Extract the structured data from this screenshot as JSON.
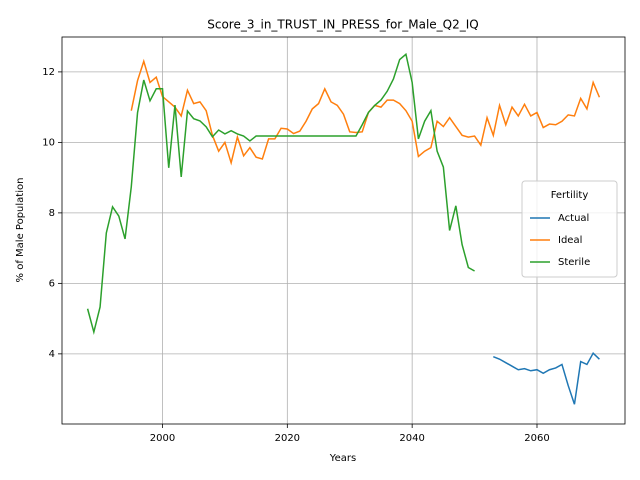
{
  "chart_data": {
    "type": "line",
    "title": "Score_3_in_TRUST_IN_PRESS_for_Male_Q2_IQ",
    "xlabel": "Years",
    "ylabel": "% of Male Population",
    "x": [
      1988,
      1989,
      1990,
      1991,
      1992,
      1993,
      1994,
      1995,
      1996,
      1997,
      1998,
      1999,
      2000,
      2001,
      2002,
      2003,
      2004,
      2005,
      2006,
      2007,
      2008,
      2009,
      2010,
      2011,
      2012,
      2013,
      2014,
      2015,
      2016,
      2017,
      2018,
      2019,
      2020,
      2021,
      2022,
      2023,
      2024,
      2025,
      2026,
      2027,
      2028,
      2029,
      2030,
      2031,
      2032,
      2033,
      2034,
      2035,
      2036,
      2037,
      2038,
      2039,
      2040,
      2041,
      2042,
      2043,
      2044,
      2045,
      2046,
      2047,
      2048,
      2049,
      2050,
      2051,
      2052,
      2053,
      2054,
      2055,
      2056,
      2057,
      2058,
      2059,
      2060,
      2061,
      2062,
      2063,
      2064,
      2065,
      2066,
      2067,
      2068,
      2069,
      2070
    ],
    "series": [
      {
        "name": "Actual",
        "color": "#1f77b4",
        "values": [
          null,
          null,
          null,
          null,
          null,
          null,
          null,
          null,
          null,
          null,
          null,
          null,
          null,
          null,
          null,
          null,
          null,
          null,
          null,
          null,
          null,
          null,
          null,
          null,
          null,
          null,
          null,
          null,
          null,
          null,
          null,
          null,
          null,
          null,
          null,
          null,
          null,
          null,
          null,
          null,
          null,
          null,
          null,
          null,
          null,
          null,
          null,
          null,
          null,
          null,
          null,
          null,
          null,
          null,
          null,
          null,
          null,
          null,
          null,
          null,
          null,
          null,
          null,
          null,
          null,
          3.92,
          3.85,
          3.75,
          3.65,
          3.55,
          3.58,
          3.52,
          3.55,
          3.45,
          3.55,
          3.6,
          3.7,
          3.1,
          2.57,
          3.78,
          3.7,
          4.02,
          3.85
        ]
      },
      {
        "name": "Ideal",
        "color": "#ff7f0e",
        "values": [
          null,
          null,
          null,
          null,
          null,
          null,
          null,
          10.9,
          11.75,
          12.3,
          11.7,
          11.85,
          11.3,
          11.15,
          11.0,
          10.75,
          11.48,
          11.1,
          11.15,
          10.9,
          10.2,
          9.75,
          10.0,
          9.42,
          10.15,
          9.62,
          9.85,
          9.58,
          9.53,
          10.1,
          10.1,
          10.4,
          10.38,
          10.25,
          10.32,
          10.6,
          10.95,
          11.1,
          11.52,
          11.15,
          11.05,
          10.8,
          10.3,
          10.28,
          10.3,
          10.85,
          11.05,
          11.0,
          11.2,
          11.2,
          11.1,
          10.9,
          10.6,
          9.6,
          9.75,
          9.85,
          10.6,
          10.45,
          10.7,
          10.45,
          10.2,
          10.15,
          10.18,
          9.92,
          10.7,
          10.2,
          11.05,
          10.5,
          11.0,
          10.75,
          11.08,
          10.75,
          10.85,
          10.42,
          10.52,
          10.5,
          10.6,
          10.78,
          10.75,
          11.25,
          10.95,
          11.7,
          11.28
        ]
      },
      {
        "name": "Sterile",
        "color": "#2ca02c",
        "values": [
          5.28,
          4.62,
          5.33,
          7.43,
          8.17,
          7.91,
          7.26,
          8.74,
          10.84,
          11.77,
          11.18,
          11.52,
          11.52,
          9.28,
          11.06,
          9.02,
          10.89,
          10.67,
          10.61,
          10.44,
          10.16,
          10.35,
          10.24,
          10.33,
          10.24,
          10.18,
          10.04,
          10.18,
          10.18,
          10.18,
          10.18,
          10.18,
          10.18,
          10.18,
          10.18,
          10.18,
          10.18,
          10.18,
          10.18,
          10.18,
          10.18,
          10.18,
          10.18,
          10.18,
          10.5,
          10.85,
          11.05,
          11.2,
          11.45,
          11.8,
          12.35,
          12.5,
          11.7,
          10.1,
          10.6,
          10.9,
          9.75,
          9.3,
          7.5,
          8.2,
          7.1,
          6.45,
          6.35,
          null,
          null,
          null,
          null,
          null,
          null,
          null,
          null,
          null,
          null,
          null,
          null,
          null,
          null,
          null,
          null,
          null,
          null,
          null,
          null
        ]
      }
    ],
    "xlim": [
      1983.9,
      2074.1
    ],
    "ylim": [
      2.01,
      12.99
    ],
    "xticks": [
      2000,
      2020,
      2040,
      2060
    ],
    "yticks": [
      4,
      6,
      8,
      10,
      12
    ],
    "grid": true,
    "legend_title": "Fertility",
    "legend_position": "right"
  }
}
